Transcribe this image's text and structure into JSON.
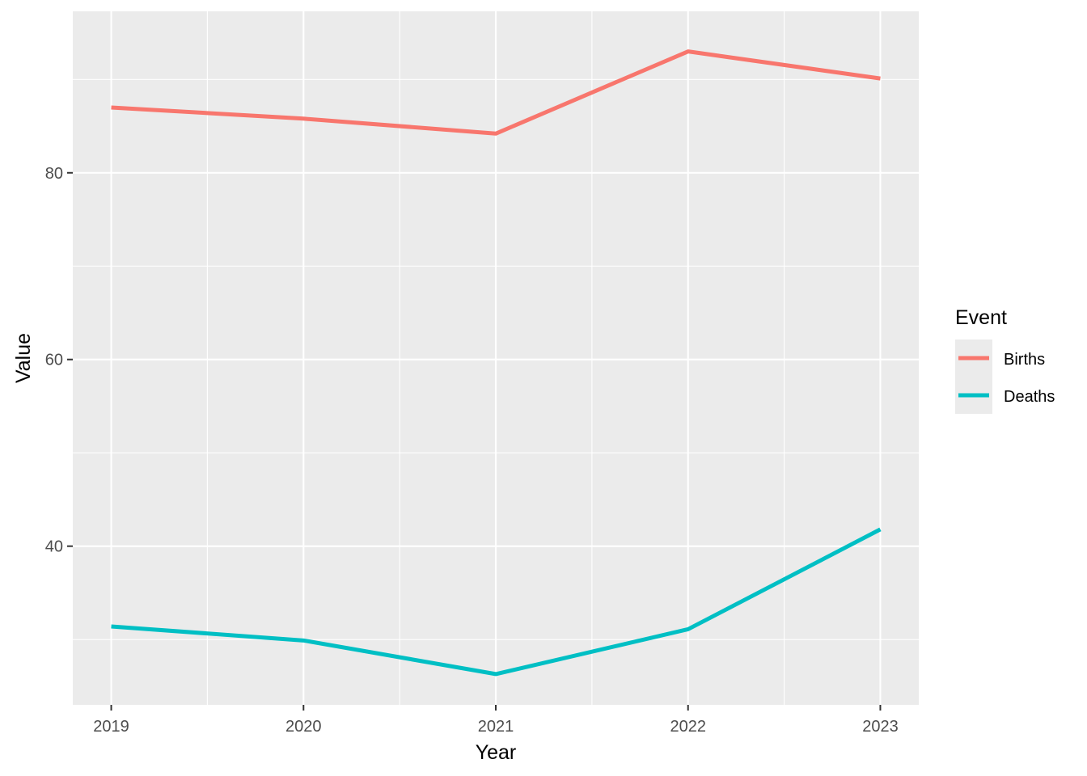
{
  "chart_data": {
    "type": "line",
    "x": [
      2019,
      2020,
      2021,
      2022,
      2023
    ],
    "x_ticks": [
      "2019",
      "2020",
      "2021",
      "2022",
      "2023"
    ],
    "xlim": [
      2018.8,
      2023.2
    ],
    "y_ticks": [
      "40",
      "60",
      "80"
    ],
    "y_tick_values": [
      40,
      60,
      80
    ],
    "ylim": [
      23.0,
      97.3
    ],
    "xlabel": "Year",
    "ylabel": "Value",
    "grid": true,
    "legend_title": "Event",
    "legend_position": "right",
    "series": [
      {
        "name": "Births",
        "color": "#F8766D",
        "values": [
          87.0,
          85.8,
          84.2,
          93.0,
          90.1
        ]
      },
      {
        "name": "Deaths",
        "color": "#00BFC4",
        "values": [
          31.4,
          29.9,
          26.3,
          31.1,
          41.8
        ]
      }
    ],
    "panel_background": "#EBEBEB",
    "gridline_color": "#FFFFFF"
  }
}
